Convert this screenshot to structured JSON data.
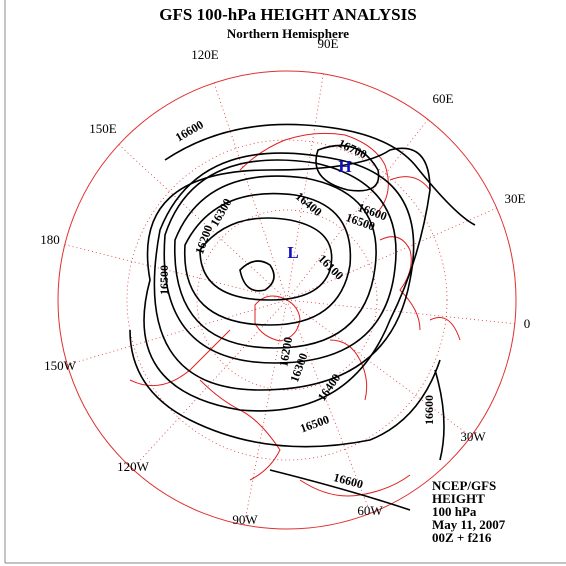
{
  "header": {
    "title": "GFS 100-hPa HEIGHT ANALYSIS",
    "subtitle": "Northern Hemisphere"
  },
  "longitudes": [
    "90E",
    "120E",
    "60E",
    "150E",
    "30E",
    "180",
    "0",
    "150W",
    "30W",
    "120W",
    "90W",
    "60W"
  ],
  "contour_labels": [
    16700,
    16600,
    16600,
    16500,
    16400,
    16300,
    16200,
    16100,
    16500,
    16200,
    16300,
    16400,
    16500,
    16600,
    16600
  ],
  "markers": {
    "high": "H",
    "low": "L"
  },
  "info": [
    "NCEP/GFS",
    "HEIGHT",
    "100 hPa",
    "May 11, 2007",
    "00Z + f216"
  ]
}
